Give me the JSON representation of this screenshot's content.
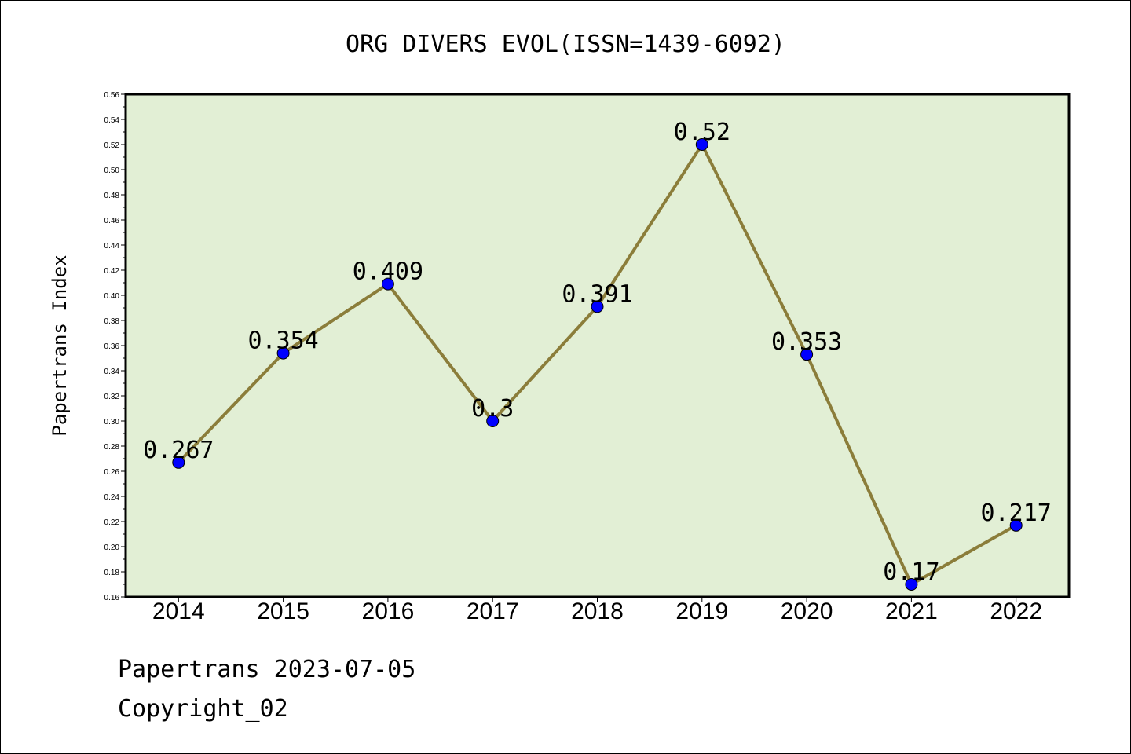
{
  "chart_data": {
    "type": "line",
    "title": "ORG DIVERS EVOL(ISSN=1439-6092)",
    "ylabel": "Papertrans Index",
    "xlabel": "",
    "categories": [
      "2014",
      "2015",
      "2016",
      "2017",
      "2018",
      "2019",
      "2020",
      "2021",
      "2022"
    ],
    "series": [
      {
        "values": [
          0.267,
          0.354,
          0.409,
          0.3,
          0.391,
          0.52,
          0.353,
          0.17,
          0.217
        ],
        "labels": [
          "0.267",
          "0.354",
          "0.409",
          "0.3",
          "0.391",
          "0.52",
          "0.353",
          "0.17",
          "0.217"
        ]
      }
    ],
    "ylim": [
      0.16,
      0.56
    ],
    "yticks": [
      "0.16",
      "0.18",
      "0.20",
      "0.22",
      "0.24",
      "0.26",
      "0.28",
      "0.30",
      "0.32",
      "0.34",
      "0.36",
      "0.38",
      "0.40",
      "0.42",
      "0.44",
      "0.46",
      "0.48",
      "0.50",
      "0.52",
      "0.54",
      "0.56"
    ],
    "grid": false,
    "colors": {
      "plot_background": "#e2efd5",
      "line": "#8b7d3a",
      "marker": "#0000ff"
    }
  },
  "footer": {
    "date_line": "Papertrans 2023-07-05",
    "copyright": "Copyright_02"
  }
}
